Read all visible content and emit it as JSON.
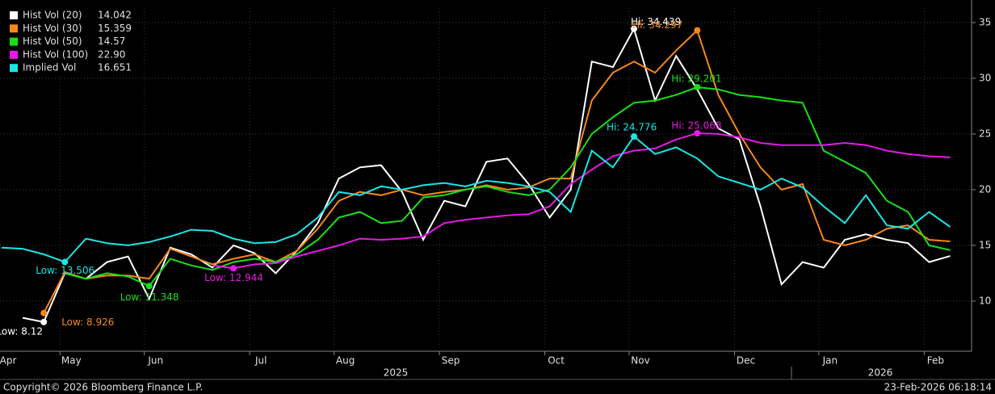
{
  "chart_data": {
    "type": "line",
    "categories": [
      "Apr",
      null,
      null,
      "May",
      null,
      null,
      null,
      "Jun",
      null,
      null,
      null,
      null,
      "Jul",
      null,
      null,
      null,
      "Aug",
      null,
      null,
      null,
      null,
      "Sep",
      null,
      null,
      null,
      null,
      "Oct",
      null,
      null,
      null,
      "Nov",
      null,
      null,
      null,
      null,
      "Dec",
      null,
      null,
      null,
      "Jan",
      null,
      null,
      null,
      null,
      "Feb",
      null
    ],
    "year_labels": [
      "2025",
      "2026"
    ],
    "series": [
      {
        "name": "Hist Vol (20)",
        "color": "#ffffff",
        "legend_label": "14.042",
        "values": [
          null,
          8.5,
          8.12,
          12.5,
          12.0,
          13.5,
          14.0,
          10.2,
          14.8,
          14.2,
          13.0,
          15.0,
          14.3,
          12.5,
          14.5,
          17.0,
          21.0,
          22.0,
          22.2,
          19.8,
          15.5,
          19.0,
          18.5,
          22.5,
          22.8,
          20.5,
          17.5,
          20.0,
          31.5,
          31.0,
          34.439,
          28.0,
          32.0,
          29.0,
          25.5,
          24.5,
          18.5,
          11.5,
          13.5,
          13.0,
          15.5,
          16.0,
          15.5,
          15.2,
          13.5,
          14.042
        ],
        "annotations": [
          {
            "label": "Low: 8.12",
            "value": 8.12
          },
          {
            "label": "Hi: 34.439",
            "value": 34.439
          }
        ]
      },
      {
        "name": "Hist Vol (30)",
        "color": "#f7861c",
        "legend_label": "15.359",
        "values": [
          null,
          null,
          8.926,
          12.6,
          12.0,
          12.3,
          12.3,
          12.0,
          14.7,
          14.0,
          13.3,
          13.8,
          14.2,
          13.5,
          14.5,
          16.5,
          19.0,
          19.8,
          19.5,
          20.0,
          19.5,
          19.8,
          20.0,
          20.4,
          20.0,
          20.2,
          21.0,
          21.0,
          28.0,
          30.5,
          31.5,
          30.5,
          32.5,
          34.297,
          28.5,
          25.0,
          22.0,
          20.0,
          20.5,
          15.5,
          15.0,
          15.5,
          16.5,
          16.8,
          15.5,
          15.359
        ],
        "annotations": [
          {
            "label": "Low: 8.926",
            "value": 8.926
          },
          {
            "label": "Hi: 34.297",
            "value": 34.297
          }
        ]
      },
      {
        "name": "Hist Vol (50)",
        "color": "#17e017",
        "legend_label": "14.57",
        "values": [
          null,
          null,
          null,
          12.5,
          12.0,
          12.5,
          12.2,
          11.348,
          13.8,
          13.2,
          12.8,
          13.5,
          13.8,
          13.5,
          14.2,
          15.5,
          17.5,
          18.0,
          17.0,
          17.2,
          19.3,
          19.5,
          20.0,
          20.3,
          19.8,
          19.5,
          20.0,
          22.0,
          25.0,
          26.5,
          27.8,
          28.0,
          28.5,
          29.201,
          29.0,
          28.5,
          28.3,
          28.0,
          27.8,
          23.5,
          22.5,
          21.5,
          19.0,
          18.0,
          15.0,
          14.57
        ],
        "annotations": [
          {
            "label": "Low: 11.348",
            "value": 11.348
          },
          {
            "label": "Hi: 29.201",
            "value": 29.201
          }
        ]
      },
      {
        "name": "Hist Vol (100)",
        "color": "#e619e6",
        "legend_label": "22.90",
        "values": [
          null,
          null,
          null,
          null,
          null,
          null,
          null,
          null,
          null,
          null,
          13.2,
          12.944,
          13.3,
          13.4,
          14.0,
          14.5,
          15.0,
          15.6,
          15.5,
          15.6,
          15.8,
          17.0,
          17.3,
          17.5,
          17.7,
          17.8,
          18.5,
          20.5,
          21.8,
          23.0,
          23.5,
          23.7,
          24.5,
          25.068,
          25.0,
          24.7,
          24.2,
          24.0,
          24.0,
          24.0,
          24.2,
          24.0,
          23.5,
          23.2,
          23.0,
          22.9
        ],
        "annotations": [
          {
            "label": "Low: 12.944",
            "value": 12.944
          },
          {
            "label": "Hi: 25.068",
            "value": 25.068
          }
        ]
      },
      {
        "name": "Implied Vol",
        "color": "#1ae6e6",
        "legend_label": "16.651",
        "values": [
          14.8,
          14.7,
          14.2,
          13.506,
          15.6,
          15.2,
          15.0,
          15.3,
          15.8,
          16.4,
          16.3,
          15.6,
          15.2,
          15.3,
          16.0,
          17.5,
          19.8,
          19.5,
          20.3,
          20.0,
          20.4,
          20.6,
          20.3,
          20.8,
          20.6,
          20.3,
          19.8,
          18.0,
          23.5,
          22.0,
          24.776,
          23.2,
          23.8,
          22.8,
          21.2,
          20.6,
          20.0,
          21.0,
          20.2,
          18.5,
          17.0,
          19.5,
          16.8,
          16.5,
          18.0,
          16.651
        ],
        "annotations": [
          {
            "label": "Low: 13.506",
            "value": 13.506
          },
          {
            "label": "Hi: 24.776",
            "value": 24.776
          }
        ]
      }
    ],
    "ylim": [
      5.5,
      36.3
    ],
    "yticks": [
      10,
      15,
      20,
      25,
      30,
      35
    ],
    "grid": true,
    "footer_left": "Copyright© 2026 Bloomberg Finance L.P.",
    "footer_right": "23-Feb-2026 06:18:14"
  }
}
